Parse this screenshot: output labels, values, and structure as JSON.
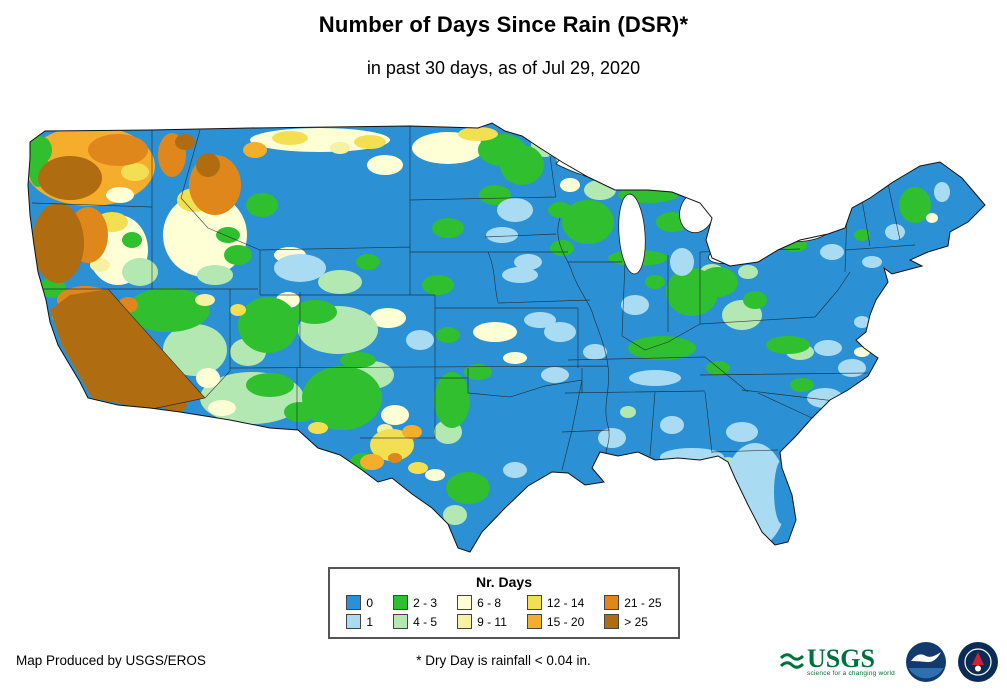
{
  "header": {
    "title": "Number of Days Since Rain (DSR)*",
    "subtitle": "in past 30 days, as of Jul 29, 2020"
  },
  "map": {
    "region": "Contiguous United States",
    "type": "days-since-rain choropleth"
  },
  "legend": {
    "title": "Nr. Days",
    "entries": [
      {
        "key": "d0",
        "label": "0",
        "color": "#2B91D4"
      },
      {
        "key": "d1",
        "label": "1",
        "color": "#A9DCF2"
      },
      {
        "key": "d2_3",
        "label": "2 - 3",
        "color": "#2FBF2F"
      },
      {
        "key": "d4_5",
        "label": "4 - 5",
        "color": "#B3E8B3"
      },
      {
        "key": "d6_8",
        "label": "6 - 8",
        "color": "#FFFFD6"
      },
      {
        "key": "d9_11",
        "label": "9 - 11",
        "color": "#F7F1A3"
      },
      {
        "key": "d12_14",
        "label": "12 - 14",
        "color": "#F3E052"
      },
      {
        "key": "d15_20",
        "label": "15 - 20",
        "color": "#F5AD2C"
      },
      {
        "key": "d21_25",
        "label": "21 - 25",
        "color": "#E0871B"
      },
      {
        "key": "d25p",
        "label": "> 25",
        "color": "#B06C10"
      }
    ]
  },
  "footer": {
    "credit": "Map Produced by USGS/EROS",
    "note": "* Dry Day is rainfall < 0.04 in."
  },
  "logos": {
    "usgs": {
      "name": "USGS",
      "tagline": "science for a changing world",
      "color": "#00703C"
    },
    "noaa": {
      "name": "NOAA",
      "color": "#123A6D"
    },
    "nws": {
      "name": "National Weather Service",
      "color": "#0B2B57"
    }
  }
}
